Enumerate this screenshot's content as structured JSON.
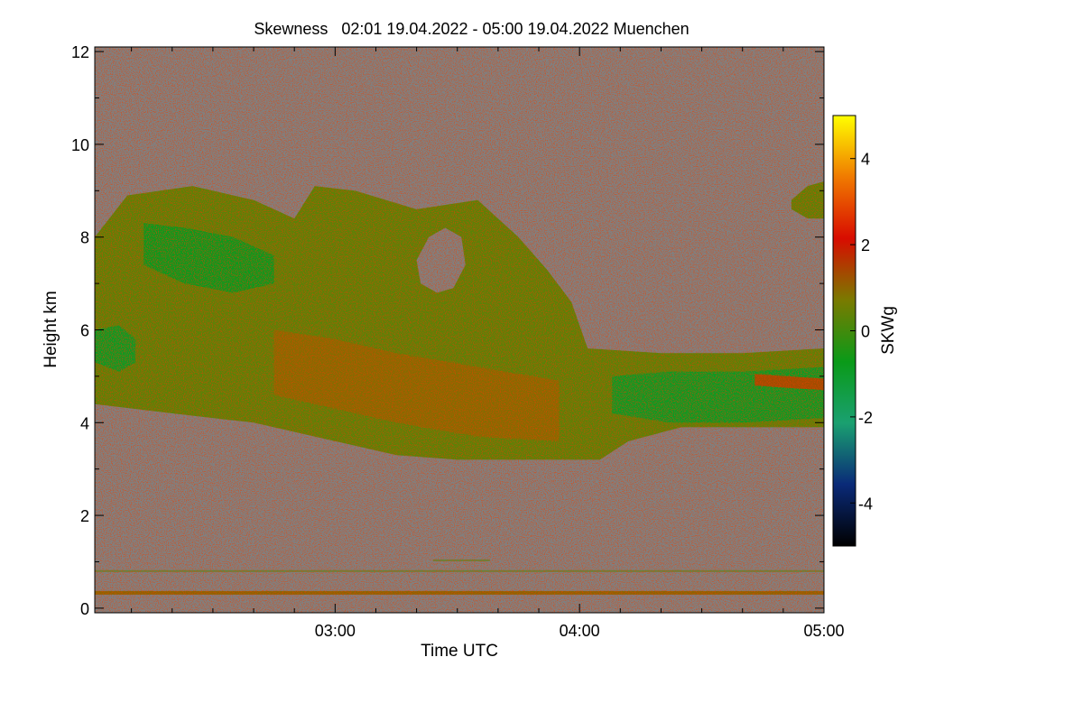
{
  "chart_data": {
    "type": "heatmap",
    "title": "Skewness   02:01 19.04.2022 - 05:00 19.04.2022 Muenchen",
    "xlabel": "Time UTC",
    "ylabel": "Height km",
    "colorbar_label": "SKWg",
    "x_range_minutes_utc": [
      121,
      300
    ],
    "x_ticks": [
      {
        "minute": 180,
        "label": "03:00"
      },
      {
        "minute": 240,
        "label": "04:00"
      },
      {
        "minute": 300,
        "label": "05:00"
      }
    ],
    "y_range_km": [
      -0.1,
      12.1
    ],
    "y_ticks": [
      {
        "value": 0,
        "label": "0"
      },
      {
        "value": 2,
        "label": "2"
      },
      {
        "value": 4,
        "label": "4"
      },
      {
        "value": 6,
        "label": "6"
      },
      {
        "value": 8,
        "label": "8"
      },
      {
        "value": 10,
        "label": "10"
      },
      {
        "value": 12,
        "label": "12"
      }
    ],
    "color_range": [
      -5,
      5
    ],
    "colorbar_ticks": [
      {
        "value": 4,
        "label": "4"
      },
      {
        "value": 2,
        "label": "2"
      },
      {
        "value": 0,
        "label": "0"
      },
      {
        "value": -2,
        "label": "-2"
      },
      {
        "value": -4,
        "label": "-4"
      }
    ],
    "colormap_stops": [
      "#000000",
      "#0a2a78",
      "#1aa070",
      "#0a9a18",
      "#7a7a00",
      "#d80c00",
      "#f07a00",
      "#ffff00"
    ],
    "background_color": "#808080",
    "features": [
      {
        "name": "main cloud layer",
        "mean_skewness": 0.3,
        "upper_edge": [
          [
            121,
            8.0
          ],
          [
            129,
            8.9
          ],
          [
            145,
            9.1
          ],
          [
            160,
            8.8
          ],
          [
            170,
            8.4
          ],
          [
            175,
            9.1
          ],
          [
            185,
            9.0
          ],
          [
            200,
            8.6
          ],
          [
            215,
            8.8
          ],
          [
            225,
            8.0
          ],
          [
            232,
            7.3
          ],
          [
            238,
            6.6
          ],
          [
            242,
            5.6
          ],
          [
            260,
            5.5
          ],
          [
            280,
            5.5
          ],
          [
            300,
            5.6
          ]
        ],
        "lower_edge": [
          [
            121,
            4.4
          ],
          [
            140,
            4.2
          ],
          [
            160,
            4.0
          ],
          [
            180,
            3.6
          ],
          [
            195,
            3.3
          ],
          [
            210,
            3.2
          ],
          [
            222,
            3.2
          ],
          [
            235,
            3.2
          ],
          [
            245,
            3.2
          ],
          [
            252,
            3.6
          ],
          [
            265,
            3.9
          ],
          [
            280,
            3.9
          ],
          [
            300,
            3.9
          ]
        ]
      },
      {
        "name": "negative skewness patch (upper left)",
        "mean_skewness": -0.8,
        "upper_edge": [
          [
            133,
            8.3
          ],
          [
            143,
            8.2
          ],
          [
            155,
            8.0
          ],
          [
            165,
            7.6
          ]
        ],
        "lower_edge": [
          [
            133,
            7.4
          ],
          [
            143,
            7.0
          ],
          [
            155,
            6.8
          ],
          [
            165,
            7.0
          ]
        ]
      },
      {
        "name": "negative skewness patch (left edge)",
        "mean_skewness": -0.9,
        "upper_edge": [
          [
            121,
            6.0
          ],
          [
            127,
            6.1
          ],
          [
            131,
            5.8
          ]
        ],
        "lower_edge": [
          [
            121,
            5.3
          ],
          [
            127,
            5.1
          ],
          [
            131,
            5.3
          ]
        ]
      },
      {
        "name": "positive skewness band (central)",
        "mean_skewness": 0.9,
        "upper_edge": [
          [
            165,
            6.0
          ],
          [
            180,
            5.8
          ],
          [
            195,
            5.5
          ],
          [
            215,
            5.2
          ],
          [
            235,
            4.9
          ]
        ],
        "lower_edge": [
          [
            165,
            4.6
          ],
          [
            180,
            4.3
          ],
          [
            195,
            4.0
          ],
          [
            215,
            3.7
          ],
          [
            235,
            3.6
          ]
        ]
      },
      {
        "name": "negative skewness region (lower right)",
        "mean_skewness": -0.9,
        "upper_edge": [
          [
            248,
            5.0
          ],
          [
            262,
            5.1
          ],
          [
            280,
            5.1
          ],
          [
            300,
            5.2
          ]
        ],
        "lower_edge": [
          [
            248,
            4.2
          ],
          [
            262,
            4.0
          ],
          [
            280,
            4.0
          ],
          [
            300,
            4.1
          ]
        ]
      },
      {
        "name": "positive skewness streak (right)",
        "mean_skewness": 1.3,
        "upper_edge": [
          [
            283,
            5.05
          ],
          [
            291,
            5.0
          ],
          [
            300,
            4.95
          ]
        ],
        "lower_edge": [
          [
            283,
            4.8
          ],
          [
            291,
            4.75
          ],
          [
            300,
            4.7
          ]
        ]
      },
      {
        "name": "upper right cloud fragment",
        "mean_skewness": 0.3,
        "upper_edge": [
          [
            292,
            8.8
          ],
          [
            296,
            9.1
          ],
          [
            300,
            9.2
          ]
        ],
        "lower_edge": [
          [
            292,
            8.6
          ],
          [
            296,
            8.4
          ],
          [
            300,
            8.4
          ]
        ]
      }
    ],
    "gaps": [
      {
        "name": "clear hole inside cloud",
        "outline": [
          [
            200,
            7.5
          ],
          [
            203,
            8.0
          ],
          [
            207,
            8.2
          ],
          [
            211,
            8.0
          ],
          [
            212,
            7.4
          ],
          [
            209,
            6.9
          ],
          [
            205,
            6.8
          ],
          [
            201,
            7.0
          ]
        ]
      }
    ],
    "surface_layer": {
      "height_km": 0.33,
      "mean_skewness": 1.0
    },
    "faint_layers": [
      {
        "x_start": 121,
        "x_end": 300,
        "height_km": 0.8,
        "mean_skewness": 0.2
      },
      {
        "x_start": 204,
        "x_end": 218,
        "height_km": 1.03,
        "mean_skewness": 0.2
      }
    ]
  }
}
